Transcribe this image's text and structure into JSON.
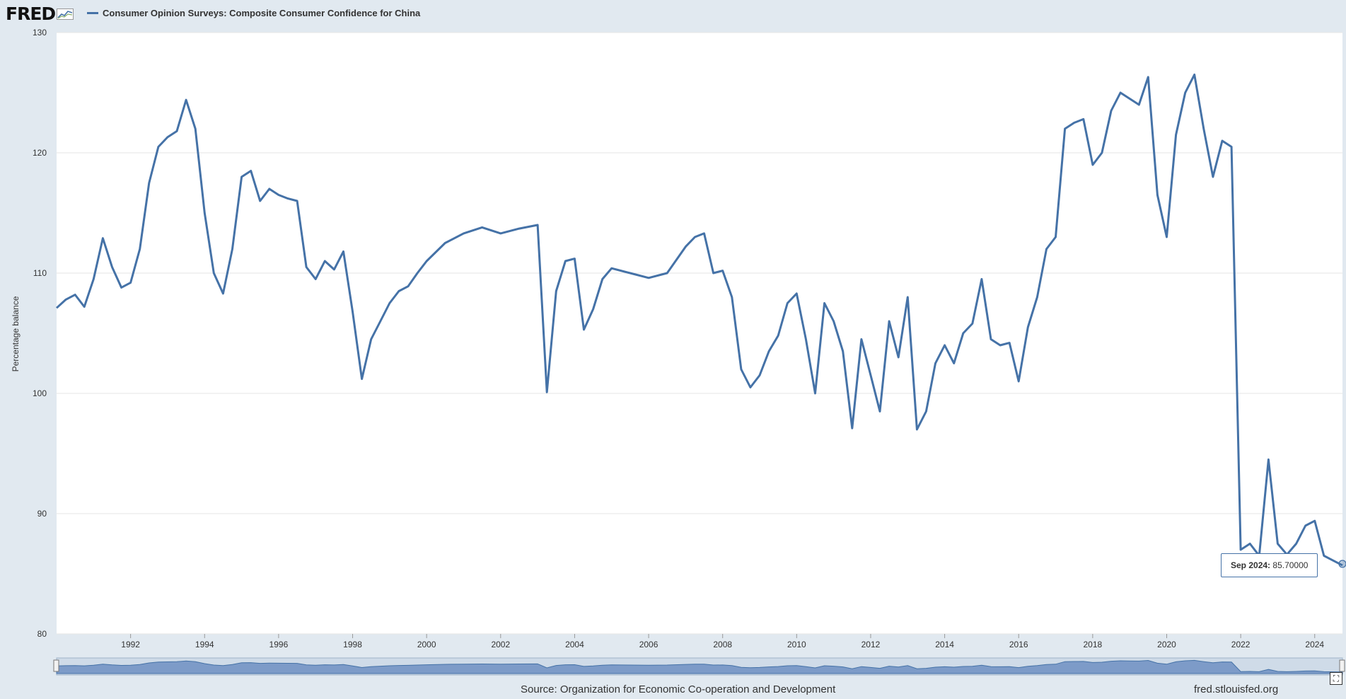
{
  "header": {
    "logo_text": "FRED",
    "legend_label": "Consumer Opinion Surveys: Composite Consumer Confidence for China"
  },
  "footer": {
    "source": "Source: Organization for Economic Co-operation and Development",
    "site": "fred.stlouisfed.org"
  },
  "tooltip": {
    "date": "Sep 2024:",
    "value": "85.70000"
  },
  "icons": {
    "logo": "chart-line-icon",
    "fullscreen": "fullscreen-icon"
  },
  "colors": {
    "line": "#4572a7",
    "background": "#e1e9f0",
    "plot": "#ffffff"
  },
  "chart_data": {
    "type": "line",
    "title": "Consumer Opinion Surveys: Composite Consumer Confidence for China",
    "ylabel": "Percentage balance",
    "xlim": [
      1990.0,
      2024.75
    ],
    "ylim": [
      80,
      130
    ],
    "yticks": [
      80,
      90,
      100,
      110,
      120,
      130
    ],
    "xticks": [
      1992,
      1994,
      1996,
      1998,
      2000,
      2002,
      2004,
      2006,
      2008,
      2010,
      2012,
      2014,
      2016,
      2018,
      2020,
      2022,
      2024
    ],
    "grid": "horizontal",
    "legend": "top-left",
    "series": [
      {
        "name": "Consumer Opinion Surveys: Composite Consumer Confidence for China",
        "x": [
          1990.0,
          1990.25,
          1990.5,
          1990.75,
          1991.0,
          1991.25,
          1991.5,
          1991.75,
          1992.0,
          1992.25,
          1992.5,
          1992.75,
          1993.0,
          1993.25,
          1993.5,
          1993.75,
          1994.0,
          1994.25,
          1994.5,
          1994.75,
          1995.0,
          1995.25,
          1995.5,
          1995.75,
          1996.0,
          1996.25,
          1996.5,
          1996.75,
          1997.0,
          1997.25,
          1997.5,
          1997.75,
          1998.0,
          1998.25,
          1998.5,
          1998.75,
          1999.0,
          1999.25,
          1999.5,
          1999.75,
          2000.0,
          2000.5,
          2001.0,
          2001.5,
          2002.0,
          2002.5,
          2003.0,
          2003.25,
          2003.5,
          2003.75,
          2004.0,
          2004.25,
          2004.5,
          2004.75,
          2005.0,
          2005.5,
          2006.0,
          2006.5,
          2007.0,
          2007.25,
          2007.5,
          2007.75,
          2008.0,
          2008.25,
          2008.5,
          2008.75,
          2009.0,
          2009.25,
          2009.5,
          2009.75,
          2010.0,
          2010.25,
          2010.5,
          2010.75,
          2011.0,
          2011.25,
          2011.5,
          2011.75,
          2012.0,
          2012.25,
          2012.5,
          2012.75,
          2013.0,
          2013.25,
          2013.5,
          2013.75,
          2014.0,
          2014.25,
          2014.5,
          2014.75,
          2015.0,
          2015.25,
          2015.5,
          2015.75,
          2016.0,
          2016.25,
          2016.5,
          2016.75,
          2017.0,
          2017.25,
          2017.5,
          2017.75,
          2018.0,
          2018.25,
          2018.5,
          2018.75,
          2019.0,
          2019.25,
          2019.5,
          2019.75,
          2020.0,
          2020.25,
          2020.5,
          2020.75,
          2021.0,
          2021.25,
          2021.5,
          2021.75,
          2022.0,
          2022.25,
          2022.5,
          2022.75,
          2023.0,
          2023.25,
          2023.5,
          2023.75,
          2024.0,
          2024.25,
          2024.5,
          2024.75
        ],
        "values": [
          107.1,
          107.8,
          108.2,
          107.2,
          109.5,
          112.9,
          110.5,
          108.8,
          109.2,
          112.0,
          117.5,
          120.5,
          121.3,
          121.8,
          124.4,
          122.0,
          115.0,
          110.0,
          108.3,
          112.0,
          118.0,
          118.5,
          116.0,
          117.0,
          116.5,
          116.2,
          116.0,
          110.5,
          109.5,
          111.0,
          110.3,
          111.8,
          106.8,
          101.2,
          104.5,
          106.0,
          107.5,
          108.5,
          108.9,
          110.0,
          111.0,
          112.5,
          113.3,
          113.8,
          113.3,
          113.7,
          114.0,
          100.1,
          108.5,
          111.0,
          111.2,
          105.3,
          107.0,
          109.5,
          110.4,
          110.0,
          109.6,
          110.0,
          112.2,
          113.0,
          113.3,
          110.0,
          110.2,
          108.0,
          102.0,
          100.5,
          101.5,
          103.5,
          104.8,
          107.5,
          108.3,
          104.5,
          100.0,
          107.5,
          106.0,
          103.5,
          97.1,
          104.5,
          101.5,
          98.5,
          106.0,
          103.0,
          108.0,
          97.0,
          98.5,
          102.5,
          104.0,
          102.5,
          105.0,
          105.8,
          109.5,
          104.5,
          104.0,
          104.2,
          101.0,
          105.5,
          108.0,
          112.0,
          113.0,
          122.0,
          122.5,
          122.8,
          119.0,
          120.0,
          123.5,
          125.0,
          124.5,
          124.0,
          126.3,
          116.5,
          113.0,
          121.5,
          125.0,
          126.5,
          122.0,
          118.0,
          121.0,
          120.5,
          87.0,
          87.5,
          86.5,
          94.5,
          87.5,
          86.6,
          87.5,
          89.0,
          89.4,
          86.5,
          86.1,
          85.7
        ]
      }
    ]
  }
}
